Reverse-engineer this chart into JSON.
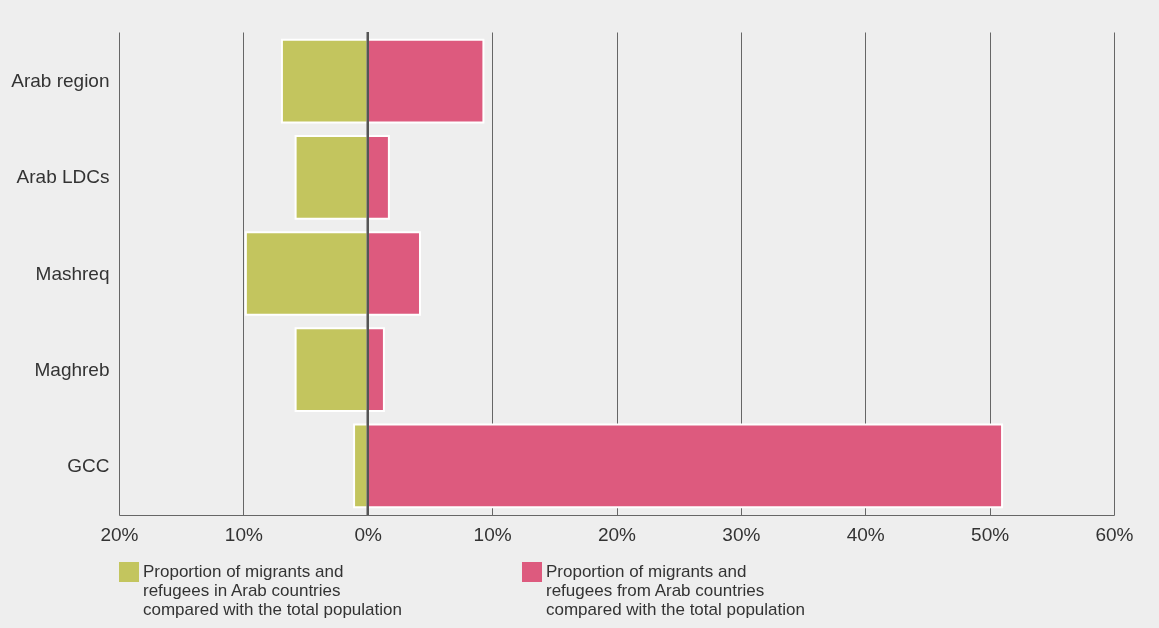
{
  "chart_data": {
    "type": "bar",
    "orientation": "horizontal",
    "stacked": true,
    "categories": [
      "Arab region",
      "Arab LDCs",
      "Mashreq",
      "Maghreb",
      "GCC"
    ],
    "series": [
      {
        "name": "Proportion of migrants and refugees in Arab countries compared with the total population",
        "color": "#c3c55e",
        "values": [
          -6.9,
          -5.8,
          -9.8,
          -5.8,
          -1.1
        ]
      },
      {
        "name": "Proportion of migrants and refugees from Arab countries compared with the total population",
        "color": "#dd5a7e",
        "values": [
          9.3,
          1.7,
          4.2,
          1.3,
          51.0
        ]
      }
    ],
    "xlim": [
      -20,
      60
    ],
    "xticks": [
      {
        "value": -20,
        "label": "20%"
      },
      {
        "value": -10,
        "label": "10%"
      },
      {
        "value": 0,
        "label": "0%"
      },
      {
        "value": 10,
        "label": "10%"
      },
      {
        "value": 20,
        "label": "20%"
      },
      {
        "value": 30,
        "label": "30%"
      },
      {
        "value": 40,
        "label": "40%"
      },
      {
        "value": 50,
        "label": "50%"
      },
      {
        "value": 60,
        "label": "60%"
      }
    ],
    "ref_lines": [
      {
        "axis": "x",
        "value": 0,
        "color": "#555555"
      }
    ],
    "grid": "x",
    "legend": "bottom"
  }
}
